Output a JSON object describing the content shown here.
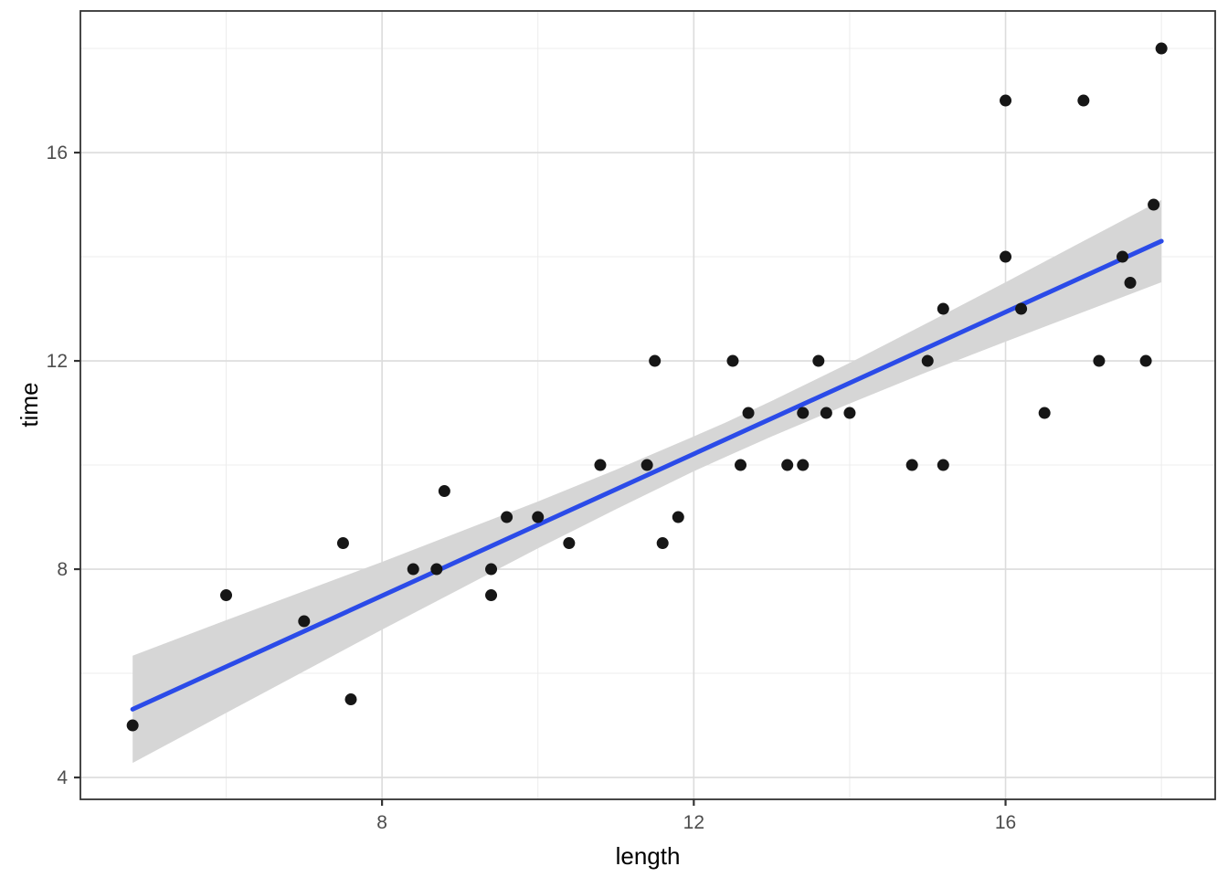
{
  "figure": {
    "background": "#ffffff"
  },
  "chart_data": {
    "type": "scatter",
    "title": "",
    "xlabel": "length",
    "ylabel": "time",
    "legend": "none",
    "grid": "major+minor",
    "xlim": [
      4.13,
      18.69
    ],
    "ylim": [
      3.58,
      18.72
    ],
    "x_ticks": [
      8,
      12,
      16
    ],
    "x_tick_labels": [
      "8",
      "12",
      "16"
    ],
    "x_minor_ticks": [
      6,
      10,
      14,
      18
    ],
    "y_ticks": [
      4,
      8,
      12,
      16
    ],
    "y_tick_labels": [
      "4",
      "8",
      "12",
      "16"
    ],
    "y_minor_ticks": [
      6,
      10,
      14,
      18
    ],
    "points": [
      [
        4.8,
        5
      ],
      [
        6,
        7.5
      ],
      [
        7,
        7
      ],
      [
        7.5,
        8.5
      ],
      [
        7.6,
        5.5
      ],
      [
        8.4,
        8
      ],
      [
        8.7,
        8
      ],
      [
        8.8,
        9.5
      ],
      [
        9.4,
        8
      ],
      [
        9.4,
        7.5
      ],
      [
        9.6,
        9
      ],
      [
        10,
        9
      ],
      [
        10.4,
        8.5
      ],
      [
        10.8,
        10
      ],
      [
        11.4,
        10
      ],
      [
        11.5,
        12
      ],
      [
        11.6,
        8.5
      ],
      [
        11.8,
        9
      ],
      [
        12.5,
        12
      ],
      [
        12.6,
        10
      ],
      [
        12.7,
        11
      ],
      [
        13.2,
        10
      ],
      [
        13.4,
        10
      ],
      [
        13.4,
        11
      ],
      [
        13.6,
        12
      ],
      [
        13.7,
        11
      ],
      [
        14,
        11
      ],
      [
        14.8,
        10
      ],
      [
        15,
        12
      ],
      [
        15.2,
        10
      ],
      [
        15.2,
        13
      ],
      [
        16,
        14
      ],
      [
        16,
        17
      ],
      [
        16.2,
        13
      ],
      [
        16.5,
        11
      ],
      [
        17,
        17
      ],
      [
        17.2,
        12
      ],
      [
        17.5,
        14
      ],
      [
        17.6,
        13.5
      ],
      [
        17.8,
        12
      ],
      [
        17.9,
        15
      ],
      [
        18,
        18
      ]
    ],
    "regression_line": {
      "x1": 4.8,
      "y1": 5.31,
      "x2": 18.0,
      "y2": 14.3
    },
    "confidence_band": [
      {
        "x": 4.8,
        "lo": 4.28,
        "hi": 6.34
      },
      {
        "x": 6.0,
        "lo": 5.24,
        "hi": 7.02
      },
      {
        "x": 8.0,
        "lo": 6.84,
        "hi": 8.14
      },
      {
        "x": 10.0,
        "lo": 8.4,
        "hi": 9.3
      },
      {
        "x": 11.0,
        "lo": 9.15,
        "hi": 9.91
      },
      {
        "x": 12.0,
        "lo": 9.88,
        "hi": 10.55
      },
      {
        "x": 12.4,
        "lo": 10.15,
        "hi": 10.81
      },
      {
        "x": 13.0,
        "lo": 10.55,
        "hi": 11.23
      },
      {
        "x": 14.0,
        "lo": 11.18,
        "hi": 11.96
      },
      {
        "x": 15.0,
        "lo": 11.79,
        "hi": 12.73
      },
      {
        "x": 16.0,
        "lo": 12.37,
        "hi": 13.51
      },
      {
        "x": 17.0,
        "lo": 12.94,
        "hi": 14.3
      },
      {
        "x": 18.0,
        "lo": 13.51,
        "hi": 15.09
      }
    ],
    "colors": {
      "point": "#161616",
      "line": "#2B4BE8",
      "band": "#D6D6D6",
      "grid_major": "#DCDCDC",
      "grid_minor": "#ECECEC",
      "panel_border": "#333333",
      "tick_mark": "#333333",
      "tick_label": "#4D4D4D",
      "axis_title": "#000000",
      "panel_background": "#FFFFFF"
    }
  }
}
